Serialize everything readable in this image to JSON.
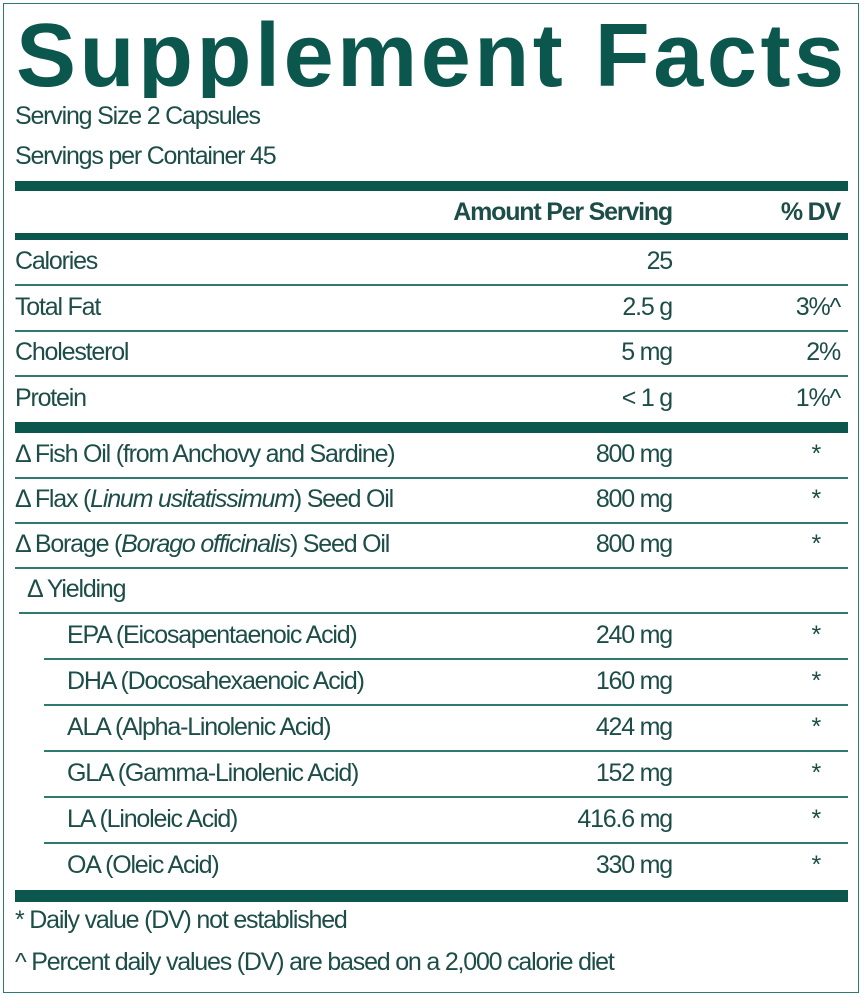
{
  "title": "Supplement Facts",
  "serving_size": "Serving Size 2 Capsules",
  "servings_per_container": "Servings per Container 45",
  "header": {
    "amount": "Amount Per Serving",
    "dv": "% DV"
  },
  "nutrients": [
    {
      "name": "Calories",
      "amount": "25",
      "dv": ""
    },
    {
      "name": "Total Fat",
      "amount": "2.5 g",
      "dv": "3%^"
    },
    {
      "name": "Cholesterol",
      "amount": "5 mg",
      "dv": "2%"
    },
    {
      "name": "Protein",
      "amount": "< 1 g",
      "dv": "1%^"
    }
  ],
  "ingredients": [
    {
      "prefix": "Δ Fish Oil (from Anchovy and Sardine)",
      "italic": "",
      "suffix": "",
      "amount": "800 mg",
      "dv": "*"
    },
    {
      "prefix": "Δ Flax (",
      "italic": "Linum usitatissimum",
      "suffix": ") Seed Oil",
      "amount": "800 mg",
      "dv": "*"
    },
    {
      "prefix": "Δ Borage (",
      "italic": "Borago officinalis",
      "suffix": ") Seed Oil",
      "amount": "800 mg",
      "dv": "*"
    }
  ],
  "yielding_label": "Δ Yielding",
  "yielding": [
    {
      "name": "EPA (Eicosapentaenoic Acid)",
      "amount": "240 mg",
      "dv": "*"
    },
    {
      "name": "DHA (Docosahexaenoic Acid)",
      "amount": "160 mg",
      "dv": "*"
    },
    {
      "name": "ALA (Alpha-Linolenic Acid)",
      "amount": "424 mg",
      "dv": "*"
    },
    {
      "name": "GLA (Gamma-Linolenic Acid)",
      "amount": "152 mg",
      "dv": "*"
    },
    {
      "name": "LA (Linoleic Acid)",
      "amount": "416.6 mg",
      "dv": "*"
    },
    {
      "name": "OA (Oleic Acid)",
      "amount": "330 mg",
      "dv": "*"
    }
  ],
  "footnotes": [
    "* Daily value (DV) not established",
    "^ Percent daily values (DV) are based on a 2,000 calorie diet"
  ],
  "colors": {
    "brand": "#0b564d",
    "text": "#1d4d48",
    "rule": "#2f7a70"
  }
}
